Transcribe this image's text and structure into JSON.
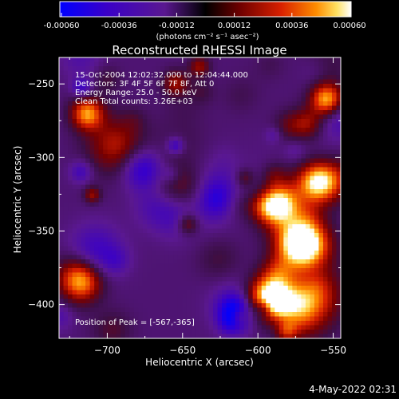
{
  "colorbar": {
    "tick_labels": [
      "-0.00060",
      "-0.00036",
      "-0.00012",
      "0.00012",
      "0.00036",
      "0.00060"
    ],
    "units_label": "(photons cm⁻² s⁻¹ asec⁻²)",
    "range": [
      -0.0006,
      0.0006
    ],
    "colors": [
      "#0000ff",
      "#3a00c8",
      "#6a2090",
      "#000000",
      "#6a0000",
      "#c81800",
      "#ff6400",
      "#ffd040",
      "#ffffff"
    ]
  },
  "chart_data": {
    "type": "heatmap",
    "title": "Reconstructed RHESSI Image",
    "xlabel": "Heliocentric X (arcsec)",
    "ylabel": "Heliocentric Y (arcsec)",
    "xlim": [
      -732,
      -545
    ],
    "ylim": [
      -423,
      -232
    ],
    "x_ticks": [
      -700,
      -650,
      -600,
      -550
    ],
    "x_tick_labels": [
      "−700",
      "−650",
      "−600",
      "−550"
    ],
    "y_ticks": [
      -250,
      -300,
      -350,
      -400
    ],
    "y_tick_labels": [
      "−250",
      "−300",
      "−350",
      "−400"
    ],
    "grid": false,
    "annotations": [
      "15-Oct-2004 12:02:32.000 to 12:04:44.000",
      "Detectors: 3F 4F 5F 6F 7F 8F, Att 0",
      "Energy Range: 25.0 - 50.0 keV",
      "Clean    Total counts: 3.26E+03"
    ],
    "peak_label": "Position of Peak = [-567,-365]",
    "peak": [
      -567,
      -365
    ],
    "value_range": [
      -0.0006,
      0.0006
    ]
  },
  "footer": {
    "timestamp": "4-May-2022 02:31"
  }
}
